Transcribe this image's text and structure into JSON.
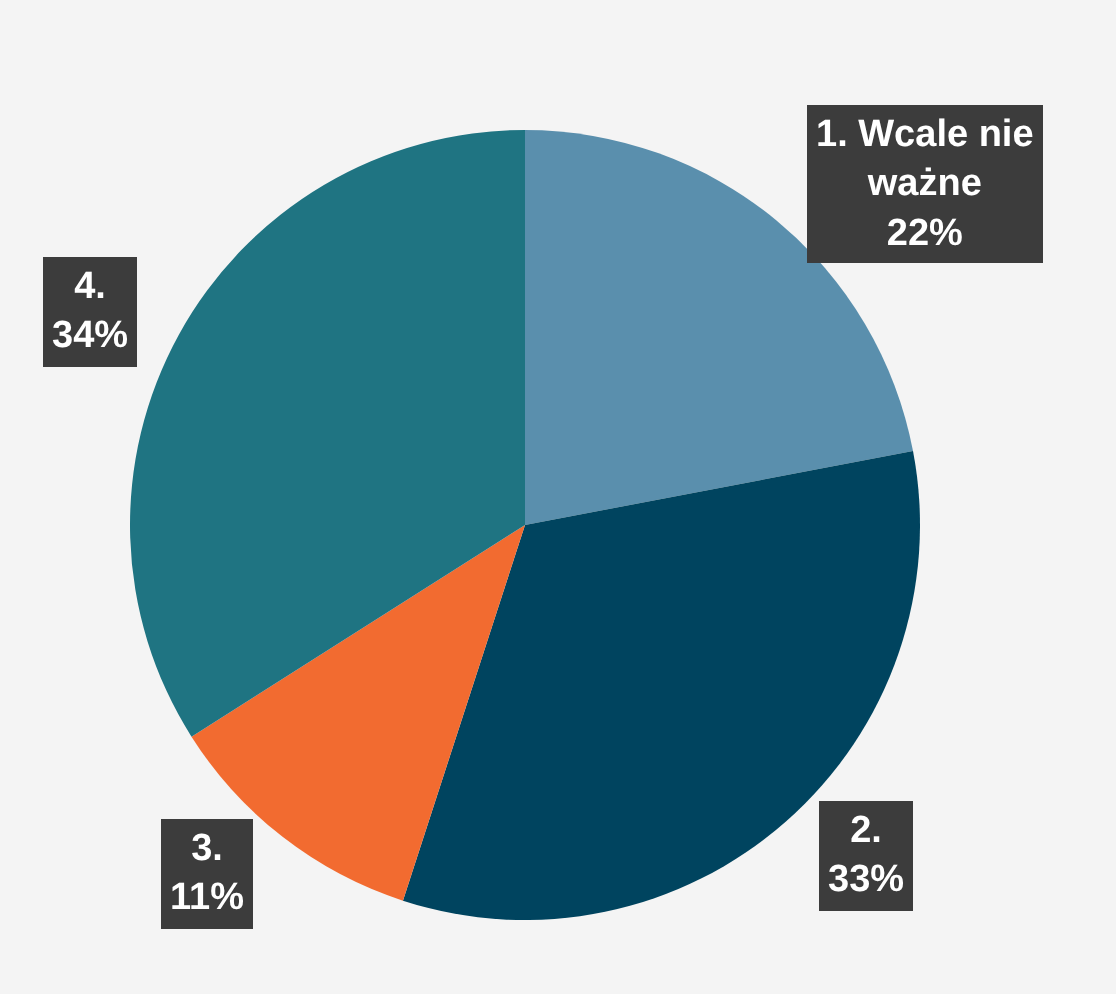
{
  "chart_data": {
    "type": "pie",
    "categories": [
      "1. Wcale nie ważne",
      "2.",
      "3.",
      "4."
    ],
    "values": [
      22,
      33,
      11,
      34
    ],
    "value_labels": [
      "22%",
      "33%",
      "11%",
      "34%"
    ],
    "colors": [
      "#5a8fad",
      "#00445f",
      "#f26b30",
      "#1f7482"
    ],
    "legend": false
  }
}
